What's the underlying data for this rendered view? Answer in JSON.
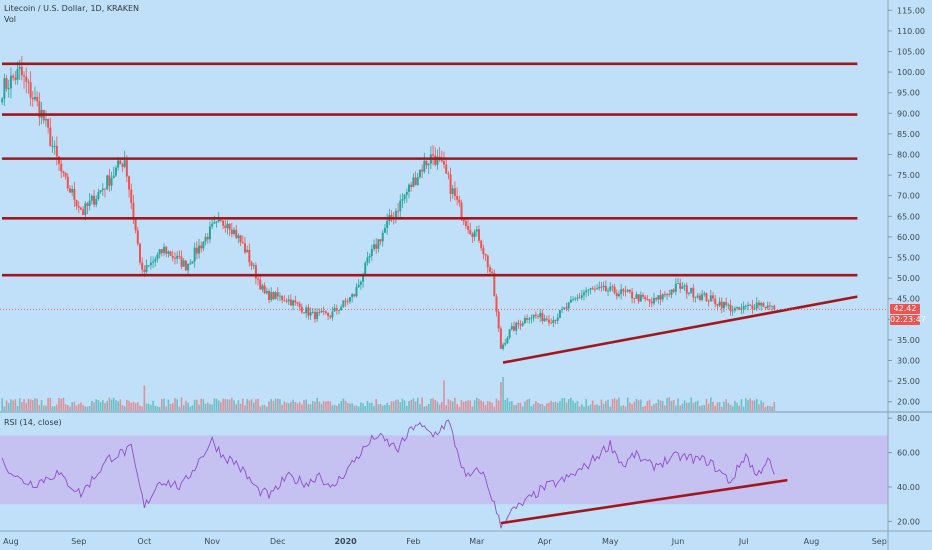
{
  "header": {
    "title": "Litecoin / U.S. Dollar, 1D, KRAKEN",
    "volume_label": "Vol",
    "rsi_label": "RSI (14, close)"
  },
  "price_tags": {
    "last_price": "42.42",
    "countdown": "02:23:47"
  },
  "colors": {
    "background": "#bfe0f8",
    "up": "#26a69a",
    "down": "#ef5350",
    "trendline": "#a3161b",
    "rsi_line": "#8e4fc9",
    "rsi_band": "#c7b8f0"
  },
  "chart_data": [
    {
      "type": "candlestick",
      "panel": "price",
      "x_tick_labels": [
        "Aug",
        "Sep",
        "Oct",
        "Nov",
        "Dec",
        "2020",
        "Feb",
        "Mar",
        "Apr",
        "May",
        "Jun",
        "Jul",
        "Aug",
        "Sep"
      ],
      "x_range": [
        "2019-07-27",
        "2020-09-05"
      ],
      "y_tick_labels": [
        "115.00",
        "110.00",
        "105.00",
        "100.00",
        "95.00",
        "90.00",
        "85.00",
        "80.00",
        "75.00",
        "70.00",
        "65.00",
        "60.00",
        "55.00",
        "50.00",
        "45.00",
        "40.00",
        "35.00",
        "30.00",
        "25.00",
        "20.00"
      ],
      "ylim": [
        17.5,
        117.5
      ],
      "last_price": 42.42,
      "horizontal_lines": [
        102,
        89.7,
        79,
        64.5,
        50.7
      ],
      "trendline": {
        "x": [
          "2020-03-13",
          "2020-08-22"
        ],
        "y": [
          29.5,
          45.5
        ]
      },
      "ohlc_keypoints": {
        "x": [
          "2019-07-28",
          "2019-08-05",
          "2019-08-15",
          "2019-08-25",
          "2019-09-03",
          "2019-09-12",
          "2019-09-22",
          "2019-09-30",
          "2019-10-10",
          "2019-10-20",
          "2019-11-01",
          "2019-11-08",
          "2019-11-16",
          "2019-11-25",
          "2019-12-05",
          "2019-12-17",
          "2019-12-25",
          "2020-01-05",
          "2020-01-12",
          "2020-01-20",
          "2020-01-28",
          "2020-02-05",
          "2020-02-10",
          "2020-02-15",
          "2020-02-22",
          "2020-02-27",
          "2020-03-02",
          "2020-03-08",
          "2020-03-12",
          "2020-03-16",
          "2020-03-25",
          "2020-04-05",
          "2020-04-20",
          "2020-04-30",
          "2020-05-10",
          "2020-05-20",
          "2020-06-01",
          "2020-06-10",
          "2020-06-20",
          "2020-06-28",
          "2020-07-08",
          "2020-07-15"
        ],
        "close": [
          96,
          100,
          90,
          74,
          66,
          72,
          79,
          51,
          57,
          53,
          62,
          64,
          57,
          46,
          45,
          41,
          41,
          46,
          55,
          63,
          70,
          77,
          80,
          76,
          67,
          62,
          60,
          50,
          33,
          37,
          41,
          40,
          47,
          47,
          46,
          44,
          48,
          46,
          44,
          42,
          44,
          42.4
        ]
      },
      "volume_spikes": {
        "x": [
          "2019-10-01",
          "2020-02-15",
          "2020-03-12",
          "2020-03-13"
        ],
        "ratio": [
          0.75,
          0.9,
          0.85,
          1.0
        ]
      }
    },
    {
      "type": "line",
      "panel": "rsi",
      "name": "RSI (14, close)",
      "y_tick_labels": [
        "80.00",
        "60.00",
        "40.00",
        "20.00"
      ],
      "ylim": [
        15,
        83
      ],
      "band": [
        30,
        70
      ],
      "keypoints": {
        "x": [
          "2019-07-28",
          "2019-08-05",
          "2019-08-12",
          "2019-08-22",
          "2019-09-02",
          "2019-09-15",
          "2019-09-25",
          "2019-10-01",
          "2019-10-08",
          "2019-10-18",
          "2019-11-01",
          "2019-11-06",
          "2019-11-12",
          "2019-11-22",
          "2019-11-28",
          "2019-12-05",
          "2019-12-15",
          "2019-12-20",
          "2019-12-25",
          "2020-01-01",
          "2020-01-08",
          "2020-01-15",
          "2020-01-25",
          "2020-02-02",
          "2020-02-10",
          "2020-02-17",
          "2020-02-25",
          "2020-03-03",
          "2020-03-08",
          "2020-03-12",
          "2020-03-15",
          "2020-03-22",
          "2020-04-01",
          "2020-04-10",
          "2020-04-20",
          "2020-05-01",
          "2020-05-07",
          "2020-05-12",
          "2020-05-20",
          "2020-06-01",
          "2020-06-05",
          "2020-06-15",
          "2020-06-25",
          "2020-07-02",
          "2020-07-07",
          "2020-07-12",
          "2020-07-16"
        ],
        "values": [
          55,
          44,
          42,
          48,
          36,
          57,
          62,
          28,
          44,
          40,
          67,
          58,
          54,
          38,
          35,
          46,
          42,
          48,
          38,
          49,
          60,
          70,
          62,
          77,
          70,
          78,
          45,
          50,
          34,
          17,
          24,
          30,
          40,
          44,
          52,
          65,
          52,
          59,
          52,
          58,
          57,
          55,
          43,
          59,
          46,
          57,
          42
        ]
      },
      "trendline": {
        "x": [
          "2020-03-12",
          "2020-07-21"
        ],
        "y": [
          19,
          44
        ]
      }
    }
  ]
}
